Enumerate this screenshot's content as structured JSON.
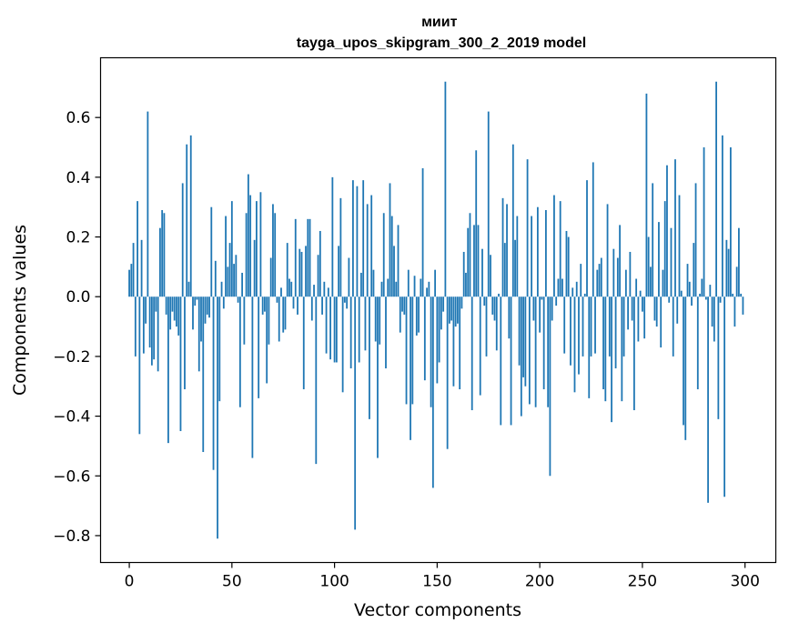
{
  "chart_data": {
    "type": "bar",
    "title": [
      "миит",
      "tayga_upos_skipgram_300_2_2019 model"
    ],
    "xlabel": "Vector components",
    "ylabel": "Components values",
    "xlim": [
      -14,
      315
    ],
    "ylim": [
      -0.89,
      0.8
    ],
    "xticks": [
      0,
      50,
      100,
      150,
      200,
      250,
      300
    ],
    "yticks": [
      -0.8,
      -0.6,
      -0.4,
      -0.2,
      0.0,
      0.2,
      0.4,
      0.6
    ],
    "ytick_labels": [
      "−0.8",
      "−0.6",
      "−0.4",
      "−0.2",
      "0.0",
      "0.2",
      "0.4",
      "0.6"
    ],
    "grid": false,
    "bar_color": "#1f77b4",
    "values": [
      0.09,
      0.11,
      0.18,
      -0.2,
      0.32,
      -0.46,
      0.19,
      -0.19,
      -0.09,
      0.62,
      -0.17,
      -0.23,
      -0.21,
      -0.05,
      -0.25,
      0.23,
      0.29,
      0.28,
      -0.06,
      -0.49,
      -0.11,
      -0.05,
      -0.08,
      -0.1,
      -0.13,
      -0.45,
      0.38,
      -0.31,
      0.51,
      0.05,
      0.54,
      -0.11,
      -0.03,
      -0.01,
      -0.25,
      -0.15,
      -0.52,
      -0.09,
      -0.06,
      -0.07,
      0.3,
      -0.58,
      0.12,
      -0.81,
      -0.35,
      0.05,
      -0.04,
      0.27,
      0.1,
      0.18,
      0.32,
      0.11,
      0.14,
      -0.02,
      -0.37,
      0.08,
      -0.16,
      0.28,
      0.41,
      0.34,
      -0.54,
      0.19,
      0.32,
      -0.34,
      0.35,
      -0.06,
      -0.05,
      -0.29,
      -0.16,
      0.13,
      0.31,
      0.28,
      -0.02,
      -0.15,
      0.03,
      -0.12,
      -0.11,
      0.18,
      0.06,
      0.05,
      -0.04,
      0.26,
      -0.06,
      0.16,
      0.15,
      -0.31,
      0.17,
      0.26,
      0.26,
      -0.08,
      0.04,
      -0.56,
      0.14,
      0.22,
      -0.06,
      0.05,
      -0.19,
      0.03,
      -0.21,
      0.4,
      -0.22,
      -0.22,
      0.17,
      0.33,
      -0.32,
      -0.02,
      -0.04,
      0.13,
      -0.24,
      0.39,
      -0.78,
      0.37,
      -0.22,
      0.08,
      0.39,
      -0.18,
      0.31,
      -0.41,
      0.34,
      0.09,
      -0.15,
      -0.54,
      -0.16,
      0.05,
      0.28,
      -0.24,
      0.06,
      0.38,
      0.27,
      0.17,
      0.05,
      0.24,
      -0.12,
      -0.05,
      -0.06,
      -0.36,
      0.09,
      -0.48,
      -0.36,
      0.07,
      -0.13,
      -0.12,
      0.06,
      0.43,
      -0.28,
      0.03,
      0.05,
      -0.37,
      -0.64,
      0.09,
      -0.29,
      -0.22,
      -0.11,
      -0.05,
      0.72,
      -0.51,
      -0.09,
      -0.08,
      -0.3,
      -0.1,
      -0.09,
      -0.31,
      -0.04,
      0.15,
      0.08,
      0.23,
      0.28,
      -0.38,
      0.24,
      0.49,
      0.24,
      -0.33,
      0.16,
      -0.03,
      -0.2,
      0.62,
      0.14,
      -0.06,
      -0.08,
      -0.18,
      0.01,
      -0.43,
      0.33,
      0.18,
      0.31,
      -0.14,
      -0.43,
      0.51,
      0.19,
      0.27,
      -0.23,
      -0.4,
      -0.27,
      -0.3,
      0.46,
      -0.36,
      0.27,
      -0.08,
      -0.37,
      0.3,
      -0.12,
      -0.01,
      -0.31,
      0.29,
      -0.37,
      -0.6,
      -0.08,
      0.34,
      -0.03,
      0.06,
      0.32,
      0.06,
      -0.19,
      0.22,
      0.2,
      -0.23,
      0.03,
      -0.32,
      0.05,
      -0.26,
      0.11,
      -0.2,
      0.01,
      0.39,
      -0.34,
      -0.2,
      0.45,
      -0.19,
      0.09,
      0.11,
      0.13,
      -0.31,
      -0.35,
      0.31,
      -0.2,
      -0.42,
      0.16,
      -0.24,
      0.13,
      0.24,
      -0.35,
      -0.2,
      0.09,
      -0.11,
      0.15,
      -0.08,
      -0.38,
      0.06,
      -0.15,
      0.02,
      -0.05,
      -0.14,
      0.68,
      0.2,
      0.1,
      0.38,
      -0.08,
      -0.1,
      0.25,
      -0.17,
      0.09,
      0.32,
      0.44,
      -0.02,
      0.23,
      -0.2,
      0.46,
      -0.09,
      0.34,
      0.02,
      -0.43,
      -0.48,
      0.11,
      0.05,
      -0.03,
      0.18,
      0.38,
      -0.31,
      0.01,
      0.06,
      0.5,
      -0.01,
      -0.69,
      0.04,
      -0.1,
      -0.15,
      0.72,
      -0.41,
      -0.02,
      0.54,
      -0.67,
      0.19,
      0.16,
      0.5,
      0.01,
      -0.1,
      0.1,
      0.23,
      0.01,
      -0.06
    ]
  }
}
